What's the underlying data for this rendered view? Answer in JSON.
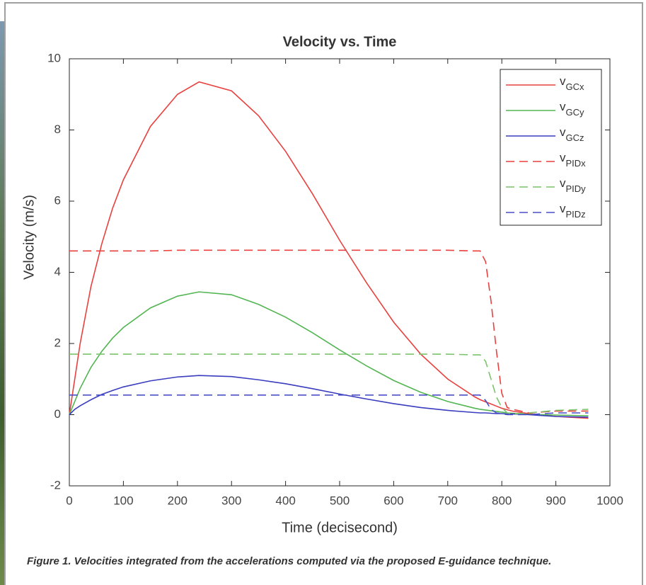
{
  "chart_data": {
    "type": "line",
    "title": "Velocity vs. Time",
    "x_label": "Time (decisecond)",
    "y_label": "Velocity (m/s)",
    "caption": "Figure 1. Velocities integrated from the accelerations computed via the proposed E-guidance technique.",
    "xlim": [
      0,
      1000
    ],
    "ylim": [
      -2,
      10
    ],
    "xticks": [
      0,
      100,
      200,
      300,
      400,
      500,
      600,
      700,
      800,
      900,
      1000
    ],
    "yticks": [
      -2,
      0,
      2,
      4,
      6,
      8,
      10
    ],
    "legend": "upper right",
    "x": [
      0,
      10,
      20,
      40,
      60,
      80,
      100,
      150,
      200,
      240,
      300,
      350,
      400,
      450,
      500,
      550,
      600,
      650,
      700,
      750,
      760,
      770,
      780,
      790,
      800,
      810,
      820,
      850,
      900,
      960
    ],
    "series": [
      {
        "name": "v",
        "name_subscript": "GCx",
        "color": "#e8413f",
        "dash": false,
        "values": [
          0,
          1.0,
          2.0,
          3.6,
          4.8,
          5.8,
          6.6,
          8.1,
          9.0,
          9.35,
          9.1,
          8.4,
          7.4,
          6.2,
          4.9,
          3.7,
          2.6,
          1.7,
          1.0,
          0.5,
          0.42,
          0.36,
          0.3,
          0.24,
          0.18,
          0.14,
          0.1,
          0.03,
          -0.05,
          -0.1
        ]
      },
      {
        "name": "v",
        "name_subscript": "GCy",
        "color": "#52b552",
        "dash": false,
        "values": [
          0,
          0.37,
          0.74,
          1.33,
          1.78,
          2.15,
          2.45,
          3.0,
          3.33,
          3.45,
          3.37,
          3.1,
          2.74,
          2.3,
          1.82,
          1.37,
          0.96,
          0.63,
          0.37,
          0.18,
          0.15,
          0.13,
          0.11,
          0.09,
          0.07,
          0.05,
          0.04,
          0.01,
          -0.01,
          -0.03
        ]
      },
      {
        "name": "v",
        "name_subscript": "GCz",
        "color": "#3a3dbf",
        "dash": false,
        "values": [
          0,
          0.15,
          0.25,
          0.42,
          0.57,
          0.68,
          0.78,
          0.95,
          1.06,
          1.1,
          1.07,
          0.98,
          0.87,
          0.73,
          0.58,
          0.44,
          0.31,
          0.2,
          0.12,
          0.06,
          0.05,
          0.05,
          0.04,
          0.03,
          0.03,
          0.02,
          0.02,
          0,
          -0.05,
          -0.07
        ]
      },
      {
        "name": "v",
        "name_subscript": "PIDx",
        "color": "#e8413f",
        "dash": true,
        "values": [
          4.6,
          4.6,
          4.6,
          4.6,
          4.6,
          4.6,
          4.6,
          4.6,
          4.62,
          4.62,
          4.62,
          4.62,
          4.62,
          4.62,
          4.62,
          4.62,
          4.62,
          4.62,
          4.62,
          4.6,
          4.6,
          4.3,
          3.2,
          1.8,
          0.6,
          0.2,
          0.15,
          0.05,
          0.1,
          0.1
        ]
      },
      {
        "name": "v",
        "name_subscript": "PIDy",
        "color": "#7cc46c",
        "dash": true,
        "values": [
          1.7,
          1.7,
          1.7,
          1.7,
          1.7,
          1.7,
          1.7,
          1.7,
          1.7,
          1.7,
          1.7,
          1.7,
          1.7,
          1.7,
          1.7,
          1.7,
          1.7,
          1.7,
          1.7,
          1.68,
          1.68,
          1.5,
          1.0,
          0.5,
          0.2,
          0.05,
          0.02,
          0.05,
          0.12,
          0.15
        ]
      },
      {
        "name": "v",
        "name_subscript": "PIDz",
        "color": "#4a4fc8",
        "dash": true,
        "values": [
          0.55,
          0.55,
          0.55,
          0.55,
          0.55,
          0.55,
          0.55,
          0.55,
          0.55,
          0.55,
          0.55,
          0.55,
          0.55,
          0.55,
          0.55,
          0.55,
          0.55,
          0.55,
          0.55,
          0.55,
          0.55,
          0.4,
          0.15,
          0.05,
          0.03,
          0,
          0,
          0,
          0.05,
          0.05
        ]
      }
    ]
  }
}
